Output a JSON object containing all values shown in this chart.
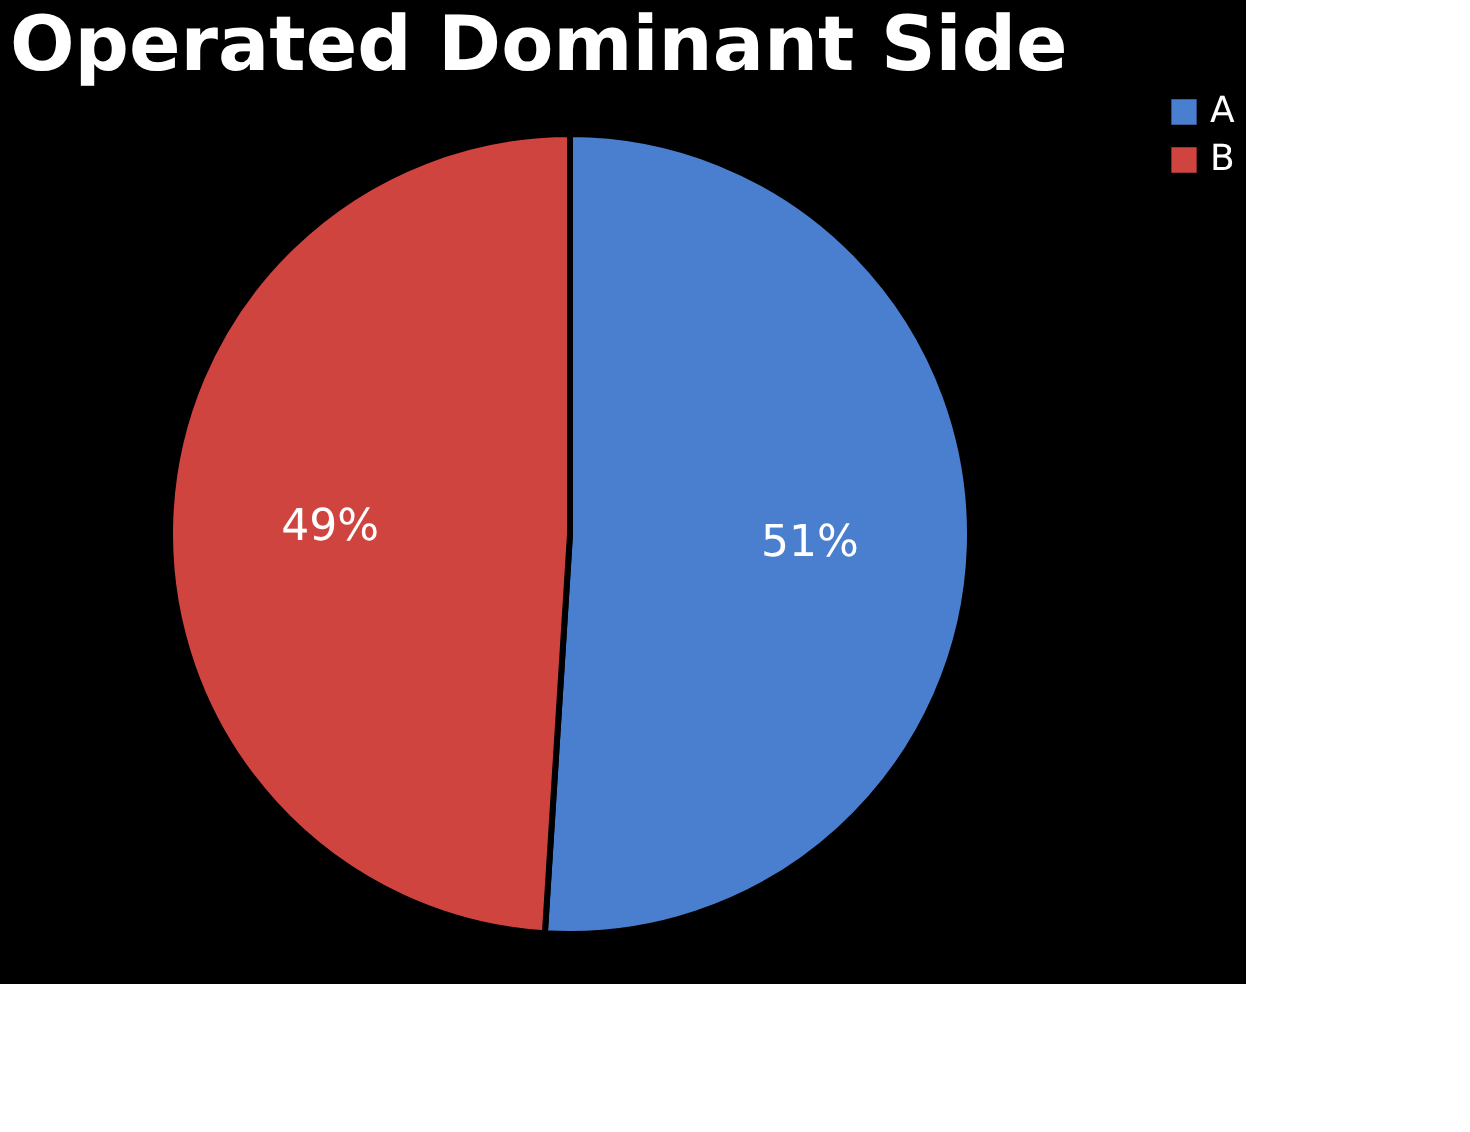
{
  "chart_data": {
    "type": "pie",
    "title": "Operated Dominant Side",
    "categories": [
      "A",
      "B"
    ],
    "values": [
      51,
      49
    ],
    "colors": [
      "#4a7fd0",
      "#d04440"
    ],
    "value_labels": [
      "51%",
      "49%"
    ],
    "legend": "right"
  }
}
